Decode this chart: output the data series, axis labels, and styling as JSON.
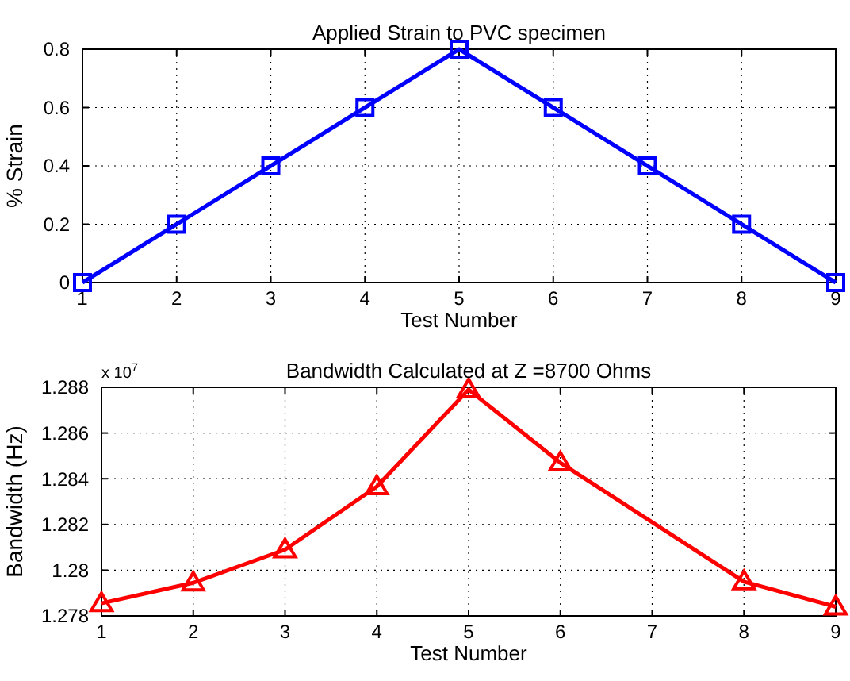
{
  "chart_data": [
    {
      "type": "line",
      "title": "Applied Strain to PVC specimen",
      "xlabel": "Test Number",
      "ylabel": "% Strain",
      "x": [
        1,
        2,
        3,
        4,
        5,
        6,
        7,
        8,
        9
      ],
      "series": [
        {
          "color": "#0000ff",
          "values": [
            0,
            0.2,
            0.4,
            0.6,
            0.8,
            0.6,
            0.4,
            0.2,
            0
          ]
        }
      ],
      "xlim": [
        1,
        9
      ],
      "xticks": [
        1,
        2,
        3,
        4,
        5,
        6,
        7,
        8,
        9
      ],
      "ylim": [
        0,
        0.8
      ],
      "yticks": [
        0,
        0.2,
        0.4,
        0.6,
        0.8
      ],
      "grid": true,
      "marker": "square",
      "line_style": "solid"
    },
    {
      "type": "line",
      "title": "Bandwidth Calculated at Z =8700 Ohms",
      "xlabel": "Test Number",
      "ylabel": "Bandwidth (Hz)",
      "annotations": [
        "x 10$^{7}$"
      ],
      "x": [
        1,
        2,
        3,
        4,
        5,
        6,
        8,
        9
      ],
      "series": [
        {
          "color": "#ff0000",
          "values": [
            1.27855,
            1.27945,
            1.2809,
            1.28366,
            1.2879,
            1.2847,
            1.2795,
            1.2784
          ]
        }
      ],
      "xlim": [
        1,
        9
      ],
      "xticks": [
        1,
        2,
        3,
        4,
        5,
        6,
        7,
        8,
        9
      ],
      "ylim": [
        1.278,
        1.288
      ],
      "yticks": [
        1.278,
        1.28,
        1.282,
        1.284,
        1.286,
        1.288
      ],
      "grid": true,
      "marker": "triangle",
      "line_style": "solid"
    }
  ]
}
